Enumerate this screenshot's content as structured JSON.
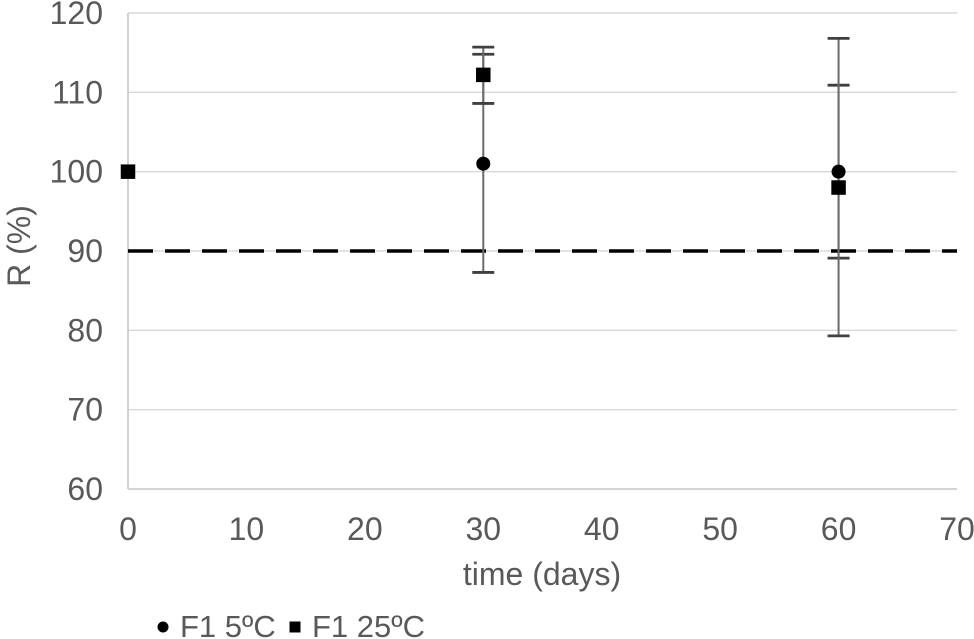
{
  "chart_data": {
    "type": "scatter",
    "title": "",
    "xlabel": "time (days)",
    "ylabel": "R (%)",
    "xlim": [
      0,
      70
    ],
    "ylim": [
      60,
      120
    ],
    "xticks": [
      0,
      10,
      20,
      30,
      40,
      50,
      60,
      70
    ],
    "yticks": [
      60,
      70,
      80,
      90,
      100,
      110,
      120
    ],
    "grid": "horizontal-major",
    "legend_position": "bottom-left",
    "reference_line": {
      "y": 90,
      "style": "dashed",
      "color": "#000000"
    },
    "series": [
      {
        "name": "F1 5ºC",
        "marker": "circle",
        "color": "#000000",
        "points": [
          {
            "x": 0,
            "y": 100
          },
          {
            "x": 30,
            "y": 101,
            "err_low": 87.3,
            "err_high": 114.8
          },
          {
            "x": 60,
            "y": 100,
            "err_low": 89.1,
            "err_high": 110.9
          }
        ]
      },
      {
        "name": "F1 25ºC",
        "marker": "square",
        "color": "#000000",
        "points": [
          {
            "x": 0,
            "y": 100
          },
          {
            "x": 30,
            "y": 112.2,
            "err_low": 108.6,
            "err_high": 115.7
          },
          {
            "x": 60,
            "y": 98,
            "err_low": 79.3,
            "err_high": 116.8
          }
        ]
      }
    ],
    "colors": {
      "text": "#595959",
      "gridline": "#D9D9D9",
      "axis": "#C6C6C6",
      "error_bar_line": "#6b6b6b",
      "error_bar_cap": "#404040",
      "marker": "#000000",
      "reference": "#000000",
      "background": "#ffffff"
    }
  }
}
